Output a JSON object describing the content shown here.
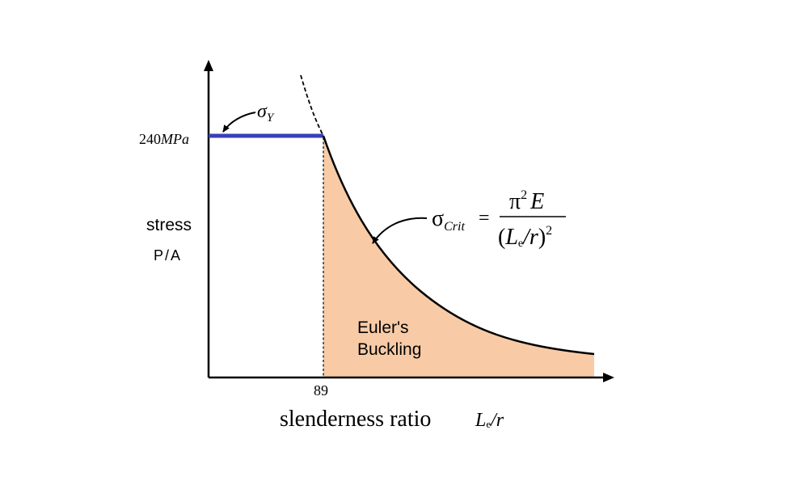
{
  "yield": {
    "value_label": "240",
    "unit_label": "MPa",
    "symbol": "σ",
    "symbol_sub": "Y"
  },
  "axes": {
    "y_label": "stress",
    "y_sublabel": "P/A",
    "x_label": "slenderness ratio",
    "x_tick_label": "89",
    "x_var_main": "L",
    "x_var_sub": "e",
    "x_var_tail": "/r"
  },
  "formula": {
    "lhs_symbol": "σ",
    "lhs_sub": "Crit",
    "equals": "=",
    "num_pi": "π",
    "num_exp": "2",
    "num_E": "E",
    "den_open": "(",
    "den_L": "L",
    "den_sub": "e",
    "den_slash_r": "/r",
    "den_close": ")",
    "den_exp": "2"
  },
  "region": {
    "line1": "Euler's",
    "line2": "Buckling"
  },
  "colors": {
    "yield_line": "#3a3fb8",
    "buckling_fill": "#f8cba6",
    "axis": "#000000"
  }
}
